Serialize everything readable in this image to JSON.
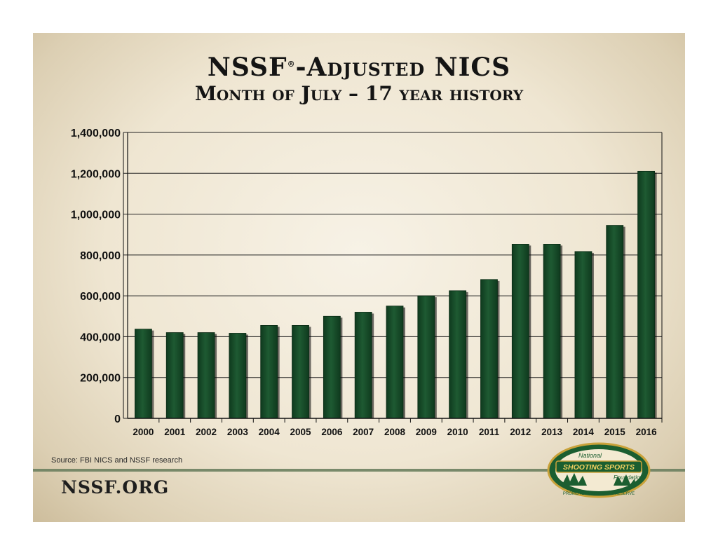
{
  "title_main": "NSSF",
  "title_mark": "®",
  "title_rest": "-Adjusted NICS",
  "subtitle": "Month of July – 17 year history",
  "source_note": "Source: FBI NICS and NSSF research",
  "site": "NSSF.ORG",
  "logo": {
    "line1": "National",
    "line2": "SHOOTING SPORTS",
    "line3": "Foundation",
    "motto": "PROMOTE • PROTECT • PRESERVE"
  },
  "colors": {
    "bar": "#1e5a32",
    "bar_dark": "#0f3a1e",
    "grid": "#222222",
    "background": "#efe6d2",
    "rule": "#6b7f5f"
  },
  "chart_data": {
    "type": "bar",
    "categories": [
      "2000",
      "2001",
      "2002",
      "2003",
      "2004",
      "2005",
      "2006",
      "2007",
      "2008",
      "2009",
      "2010",
      "2011",
      "2012",
      "2013",
      "2014",
      "2015",
      "2016"
    ],
    "values": [
      437000,
      420000,
      420000,
      417000,
      455000,
      455000,
      500000,
      520000,
      550000,
      600000,
      625000,
      680000,
      853000,
      853000,
      817000,
      945000,
      1210000
    ],
    "ylim": [
      0,
      1400000
    ],
    "yticks": [
      0,
      200000,
      400000,
      600000,
      800000,
      1000000,
      1200000,
      1400000
    ],
    "ytick_labels": [
      "0",
      "200,000",
      "400,000",
      "600,000",
      "800,000",
      "1,000,000",
      "1,200,000",
      "1,400,000"
    ],
    "grid": true,
    "legend": "none"
  }
}
